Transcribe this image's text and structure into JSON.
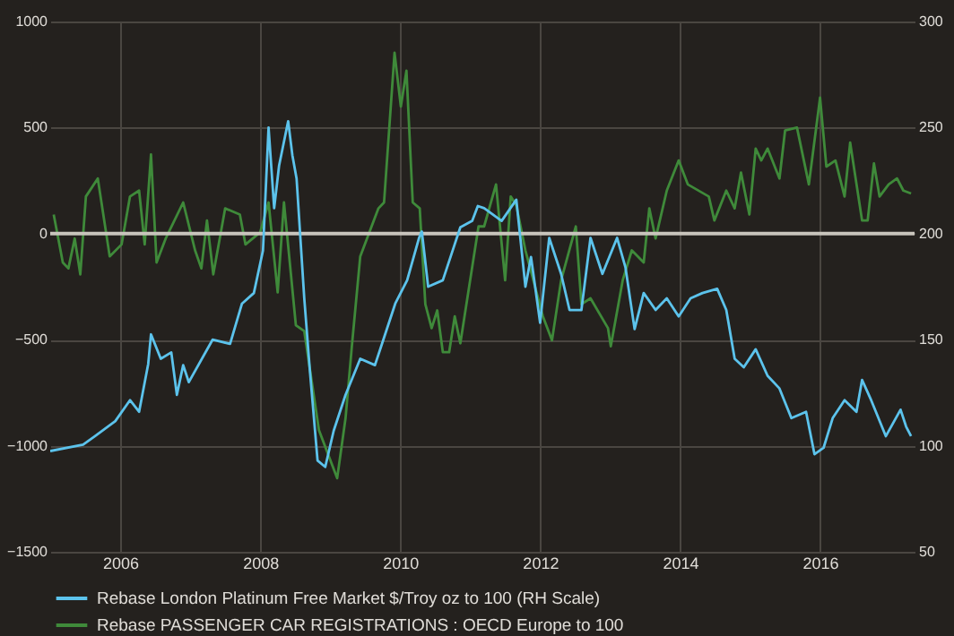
{
  "chart_data": {
    "type": "line",
    "xlim": [
      2005,
      2017.35
    ],
    "xticks": [
      2006,
      2008,
      2010,
      2012,
      2014,
      2016
    ],
    "ylim": [
      -1500,
      1000
    ],
    "yticks": [
      -1500,
      -1000,
      -500,
      0,
      500,
      1000
    ],
    "y2lim": [
      50,
      300
    ],
    "y2ticks": [
      50,
      100,
      150,
      200,
      250,
      300
    ],
    "grid": true,
    "legend": "bottom left",
    "ref_lines": [
      {
        "axis": "y",
        "value": 0,
        "color": "#c8c4bc"
      }
    ],
    "series": [
      {
        "name": "Rebase London Platinum Free Market $/Troy oz to 100 (RH Scale)",
        "color": "#5cc3ec",
        "axis": "y2",
        "x": [
          2005.0,
          2005.47,
          2005.64,
          2005.93,
          2006.14,
          2006.27,
          2006.4,
          2006.44,
          2006.58,
          2006.73,
          2006.81,
          2006.9,
          2006.98,
          2007.32,
          2007.57,
          2007.74,
          2007.91,
          2008.04,
          2008.12,
          2008.2,
          2008.27,
          2008.4,
          2008.46,
          2008.52,
          2008.63,
          2008.71,
          2008.82,
          2008.93,
          2009.05,
          2009.22,
          2009.43,
          2009.64,
          2009.76,
          2009.93,
          2010.1,
          2010.27,
          2010.31,
          2010.4,
          2010.61,
          2010.78,
          2010.86,
          2011.03,
          2011.11,
          2011.2,
          2011.45,
          2011.66,
          2011.79,
          2011.87,
          2012.0,
          2012.13,
          2012.3,
          2012.42,
          2012.59,
          2012.72,
          2012.89,
          2013.1,
          2013.22,
          2013.35,
          2013.48,
          2013.65,
          2013.81,
          2013.98,
          2014.15,
          2014.32,
          2014.53,
          2014.66,
          2014.78,
          2014.91,
          2015.08,
          2015.25,
          2015.42,
          2015.59,
          2015.8,
          2015.92,
          2016.05,
          2016.18,
          2016.35,
          2016.52,
          2016.6,
          2016.73,
          2016.94,
          2017.15,
          2017.23,
          2017.3
        ],
        "values": [
          97.5,
          100.5,
          104.5,
          111.6,
          121.5,
          116,
          138.5,
          152.5,
          141,
          144,
          124,
          138,
          130,
          150,
          148,
          167,
          172,
          192,
          250,
          212,
          232,
          253,
          237,
          226,
          169.5,
          135.6,
          93,
          90,
          107,
          124,
          141,
          138,
          150,
          167,
          178,
          198,
          201,
          175,
          178,
          195,
          203,
          206,
          213,
          212,
          206,
          216,
          175,
          189,
          158,
          198,
          181,
          164,
          164,
          198,
          181,
          198,
          184,
          155,
          172,
          164,
          169.5,
          161,
          169.5,
          172,
          174,
          164,
          141,
          137,
          145.5,
          133,
          127,
          113,
          116,
          96,
          99,
          113,
          121.5,
          116,
          131,
          121.5,
          104.5,
          117,
          109,
          104.5
        ]
      },
      {
        "name": "Rebase PASSENGER CAR REGISTRATIONS : OECD Europe to 100",
        "color": "#3f8a3a",
        "axis": "y",
        "x": [
          2005.05,
          2005.18,
          2005.26,
          2005.35,
          2005.43,
          2005.51,
          2005.68,
          2005.85,
          2006.02,
          2006.14,
          2006.27,
          2006.35,
          2006.44,
          2006.52,
          2006.65,
          2006.9,
          2007.07,
          2007.16,
          2007.24,
          2007.33,
          2007.5,
          2007.71,
          2007.79,
          2008.0,
          2008.12,
          2008.25,
          2008.34,
          2008.51,
          2008.63,
          2008.84,
          2009.1,
          2009.22,
          2009.31,
          2009.43,
          2009.69,
          2009.77,
          2009.92,
          2010.01,
          2010.09,
          2010.18,
          2010.28,
          2010.36,
          2010.45,
          2010.53,
          2010.61,
          2010.7,
          2010.78,
          2010.86,
          2011.12,
          2011.2,
          2011.37,
          2011.5,
          2011.58,
          2011.66,
          2011.79,
          2012.04,
          2012.17,
          2012.3,
          2012.51,
          2012.59,
          2012.72,
          2012.97,
          2013.01,
          2013.18,
          2013.31,
          2013.48,
          2013.56,
          2013.65,
          2013.81,
          2013.98,
          2014.11,
          2014.41,
          2014.49,
          2014.66,
          2014.78,
          2014.87,
          2014.99,
          2015.08,
          2015.16,
          2015.25,
          2015.42,
          2015.5,
          2015.67,
          2015.84,
          2016.0,
          2016.09,
          2016.22,
          2016.35,
          2016.43,
          2016.6,
          2016.68,
          2016.77,
          2016.85,
          2016.98,
          2017.1,
          2017.19,
          2017.3
        ],
        "values": [
          90,
          -136,
          -164,
          -23,
          -192,
          175,
          260,
          -107,
          -51,
          175,
          203,
          -51,
          373,
          -136,
          -23,
          147,
          -79,
          -164,
          62,
          -192,
          119,
          90,
          -51,
          6,
          147,
          -277,
          147,
          -432,
          -460,
          -927,
          -1153,
          -870,
          -531,
          -107,
          119,
          147,
          853,
          599,
          768,
          147,
          119,
          -333,
          -446,
          -362,
          -559,
          -559,
          -390,
          -517,
          34,
          34,
          232,
          -220,
          175,
          133,
          -79,
          -390,
          -503,
          -220,
          34,
          -333,
          -305,
          -446,
          -531,
          -220,
          -79,
          -136,
          119,
          -23,
          203,
          345,
          232,
          175,
          62,
          203,
          119,
          288,
          90,
          401,
          345,
          401,
          260,
          486,
          500,
          232,
          641,
          316,
          345,
          175,
          429,
          62,
          62,
          331,
          175,
          232,
          260,
          203,
          189
        ]
      }
    ]
  }
}
